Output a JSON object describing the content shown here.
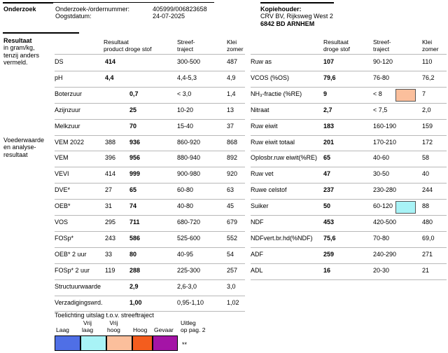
{
  "header": {
    "section_label": "Onderzoek",
    "order_label": "Onderzoek-/ordernummer:",
    "order_value": "405999/006823658",
    "date_label": "Oogstdatum:",
    "date_value": "24-07-2025",
    "copy_label": "Kopiehouder:",
    "copy_line1": "CRV BV, Rijksweg West 2",
    "copy_line2": "6842 BD  ARNHEM"
  },
  "sections": {
    "result_title": "Resultaat",
    "result_unit_1": "in gram/kg,",
    "result_unit_2": "tenzij anders",
    "result_unit_3": "vermeld.",
    "feed_1": "Voederwaarde",
    "feed_2": "en analyse-",
    "feed_3": "resultaat"
  },
  "left_columns": {
    "product_1": "Resultaat",
    "product_2": "product droge stof",
    "target_1": "Streef-",
    "target_2": "traject",
    "clay_1": "Klei",
    "clay_2": "zomer"
  },
  "right_columns": {
    "result_1": "Resultaat",
    "result_2": "droge stof",
    "target_1": "Streef-",
    "target_2": "traject",
    "clay_1": "Klei",
    "clay_2": "zomer"
  },
  "left_rows": [
    {
      "label": "DS",
      "product": "414",
      "dry": "",
      "target": "300-500",
      "clay": "487"
    },
    {
      "label": "pH",
      "product": "4,4",
      "dry": "",
      "target": "4,4-5,3",
      "clay": "4,9"
    },
    {
      "label": "Boterzuur",
      "product": "",
      "dry": "0,7",
      "target": "< 3,0",
      "clay": "1,4"
    },
    {
      "label": "Azijnzuur",
      "product": "",
      "dry": "25",
      "target": "10-20",
      "clay": "13"
    },
    {
      "label": "Melkzuur",
      "product": "",
      "dry": "70",
      "target": "15-40",
      "clay": "37"
    },
    {
      "label": "VEM 2022",
      "product": "388",
      "dry": "936",
      "target": "860-920",
      "clay": "868"
    },
    {
      "label": "VEM",
      "product": "396",
      "dry": "956",
      "target": "880-940",
      "clay": "892"
    },
    {
      "label": "VEVI",
      "product": "414",
      "dry": "999",
      "target": "900-980",
      "clay": "920"
    },
    {
      "label": "DVE*",
      "product": "27",
      "dry": "65",
      "target": "60-80",
      "clay": "63"
    },
    {
      "label": "OEB*",
      "product": "31",
      "dry": "74",
      "target": "40-80",
      "clay": "45"
    },
    {
      "label": "VOS",
      "product": "295",
      "dry": "711",
      "target": "680-720",
      "clay": "679"
    },
    {
      "label": "FOSp*",
      "product": "243",
      "dry": "586",
      "target": "525-600",
      "clay": "552"
    },
    {
      "label": "OEB* 2 uur",
      "product": "33",
      "dry": "80",
      "target": "40-95",
      "clay": "54"
    },
    {
      "label": "FOSp* 2 uur",
      "product": "119",
      "dry": "288",
      "target": "225-300",
      "clay": "257"
    },
    {
      "label": "Structuurwaarde",
      "product": "",
      "dry": "2,9",
      "target": "2,6-3,0",
      "clay": "3,0"
    },
    {
      "label": "Verzadigingswrd.",
      "product": "",
      "dry": "1,00",
      "target": "0,95-1,10",
      "clay": "1,02"
    }
  ],
  "right_rows": [
    {
      "label": "Ruw as",
      "value": "107",
      "target": "90-120",
      "clay": "110",
      "indicator": ""
    },
    {
      "label": "VCOS (%OS)",
      "value": "79,6",
      "target": "76-80",
      "clay": "76,2",
      "indicator": ""
    },
    {
      "label": "NH₃-fractie (%RE)",
      "value": "9",
      "target": "< 8",
      "clay": "7",
      "indicator": "hoog"
    },
    {
      "label": "Nitraat",
      "value": "2,7",
      "target": "< 7,5",
      "clay": "2,0",
      "indicator": ""
    },
    {
      "label": "Ruw eiwit",
      "value": "183",
      "target": "160-190",
      "clay": "159",
      "indicator": ""
    },
    {
      "label": "Ruw eiwit totaal",
      "value": "201",
      "target": "170-210",
      "clay": "172",
      "indicator": ""
    },
    {
      "label": "Oplosbr.ruw eiwit(%RE)",
      "value": "65",
      "target": "40-60",
      "clay": "58",
      "indicator": ""
    },
    {
      "label": "Ruw vet",
      "value": "47",
      "target": "30-50",
      "clay": "40",
      "indicator": ""
    },
    {
      "label": "Ruwe celstof",
      "value": "237",
      "target": "230-280",
      "clay": "244",
      "indicator": ""
    },
    {
      "label": "Suiker",
      "value": "50",
      "target": "60-120",
      "clay": "88",
      "indicator": "vrij-laag"
    },
    {
      "label": "NDF",
      "value": "453",
      "target": "420-500",
      "clay": "480",
      "indicator": ""
    },
    {
      "label": "NDFvert.br.hd(%NDF)",
      "value": "75,6",
      "target": "70-80",
      "clay": "69,0",
      "indicator": ""
    },
    {
      "label": "ADF",
      "value": "259",
      "target": "240-290",
      "clay": "271",
      "indicator": ""
    },
    {
      "label": "ADL",
      "value": "16",
      "target": "20-30",
      "clay": "21",
      "indicator": ""
    }
  ],
  "legend": {
    "title": "Toelichting uitslag t.o.v. streeftraject",
    "laag": "Laag",
    "vrij_laag_1": "Vrij",
    "vrij_laag_2": "laag",
    "vrij_hoog_1": "Vrij",
    "vrij_hoog_2": "hoog",
    "hoog": "Hoog",
    "gevaar": "Gevaar",
    "uitleg_1": "Uitleg",
    "uitleg_2": "op pag. 2",
    "stars": "**",
    "colors": {
      "laag": "#4f6fe6",
      "vrij_laag": "#a8f3f6",
      "vrij_hoog": "#fbbf9c",
      "hoog": "#f45d1e",
      "gevaar": "#a414a6"
    }
  }
}
